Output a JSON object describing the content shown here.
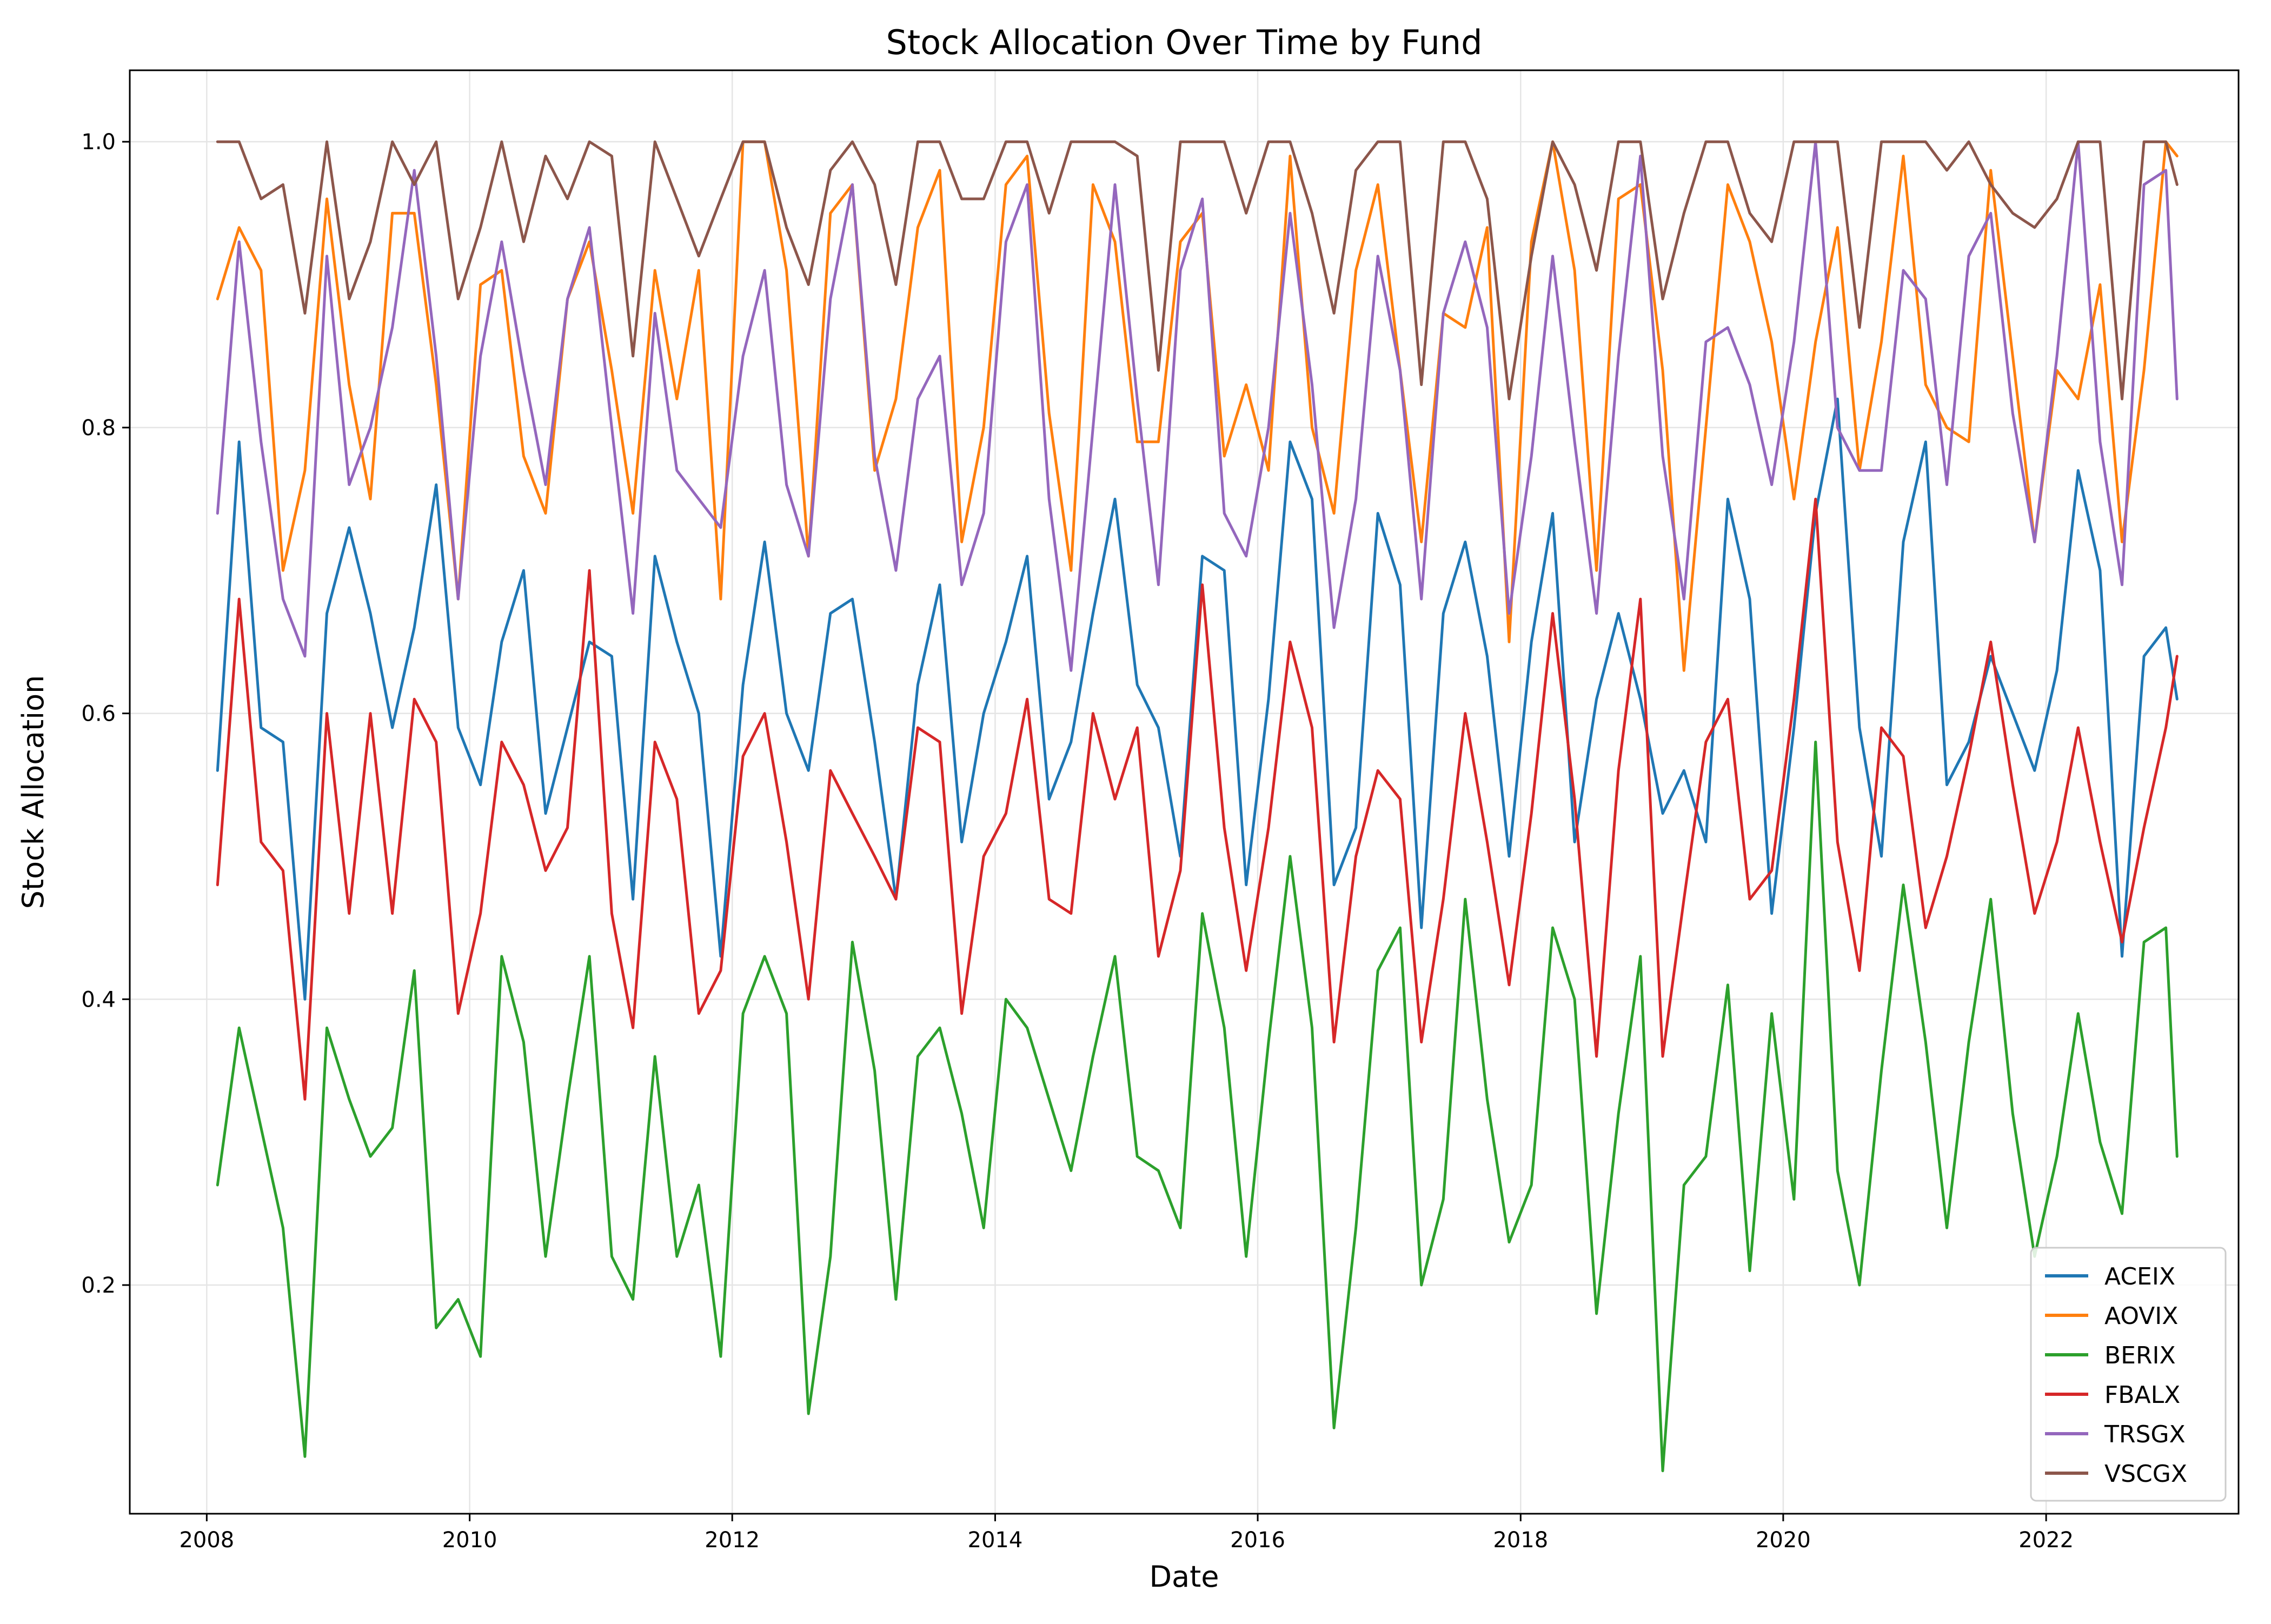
{
  "chart_data": {
    "type": "line",
    "title": "Stock Allocation Over Time by Fund",
    "xlabel": "Date",
    "ylabel": "Stock Allocation",
    "x_type": "date",
    "xlim": [
      "2007-06-01",
      "2023-06-20"
    ],
    "ylim": [
      0.04,
      1.05
    ],
    "x_ticks": [
      "2008",
      "2010",
      "2012",
      "2014",
      "2016",
      "2018",
      "2020",
      "2022"
    ],
    "y_ticks": [
      "0.2",
      "0.4",
      "0.6",
      "0.8",
      "1.0"
    ],
    "grid": true,
    "legend_position": "bottom-right",
    "x": [
      "2008-01-31",
      "2008-03-31",
      "2008-05-31",
      "2008-07-31",
      "2008-09-30",
      "2008-11-30",
      "2009-01-31",
      "2009-03-31",
      "2009-05-31",
      "2009-07-31",
      "2009-09-30",
      "2009-11-30",
      "2010-01-31",
      "2010-03-31",
      "2010-05-31",
      "2010-07-31",
      "2010-09-30",
      "2010-11-30",
      "2011-01-31",
      "2011-03-31",
      "2011-05-31",
      "2011-07-31",
      "2011-09-30",
      "2011-11-30",
      "2012-01-31",
      "2012-03-31",
      "2012-05-31",
      "2012-07-31",
      "2012-09-30",
      "2012-11-30",
      "2013-01-31",
      "2013-03-31",
      "2013-05-31",
      "2013-07-31",
      "2013-09-30",
      "2013-11-30",
      "2014-01-31",
      "2014-03-31",
      "2014-05-31",
      "2014-07-31",
      "2014-09-30",
      "2014-11-30",
      "2015-01-31",
      "2015-03-31",
      "2015-05-31",
      "2015-07-31",
      "2015-09-30",
      "2015-11-30",
      "2016-01-31",
      "2016-03-31",
      "2016-05-31",
      "2016-07-31",
      "2016-09-30",
      "2016-11-30",
      "2017-01-31",
      "2017-03-31",
      "2017-05-31",
      "2017-07-31",
      "2017-09-30",
      "2017-11-30",
      "2018-01-31",
      "2018-03-31",
      "2018-05-31",
      "2018-07-31",
      "2018-09-30",
      "2018-11-30",
      "2019-01-31",
      "2019-03-31",
      "2019-05-31",
      "2019-07-31",
      "2019-09-30",
      "2019-11-30",
      "2020-01-31",
      "2020-03-31",
      "2020-05-31",
      "2020-07-31",
      "2020-09-30",
      "2020-11-30",
      "2021-01-31",
      "2021-03-31",
      "2021-05-31",
      "2021-07-31",
      "2021-09-30",
      "2021-11-30",
      "2022-01-31",
      "2022-03-31",
      "2022-05-31",
      "2022-07-31",
      "2022-09-30",
      "2022-11-30",
      "2022-12-31"
    ],
    "series": [
      {
        "name": "ACEIX",
        "color": "#1f77b4",
        "values": [
          0.56,
          0.79,
          0.59,
          0.58,
          0.4,
          0.67,
          0.73,
          0.67,
          0.59,
          0.66,
          0.76,
          0.59,
          0.55,
          0.65,
          0.7,
          0.53,
          0.59,
          0.65,
          0.64,
          0.47,
          0.71,
          0.65,
          0.6,
          0.43,
          0.62,
          0.72,
          0.6,
          0.56,
          0.67,
          0.68,
          0.58,
          0.47,
          0.62,
          0.69,
          0.51,
          0.6,
          0.65,
          0.71,
          0.54,
          0.58,
          0.67,
          0.75,
          0.62,
          0.59,
          0.5,
          0.71,
          0.7,
          0.48,
          0.61,
          0.79,
          0.75,
          0.48,
          0.52,
          0.74,
          0.69,
          0.45,
          0.67,
          0.72,
          0.64,
          0.5,
          0.65,
          0.74,
          0.51,
          0.61,
          0.67,
          0.61,
          0.53,
          0.56,
          0.51,
          0.75,
          0.68,
          0.46,
          0.59,
          0.74,
          0.82,
          0.59,
          0.5,
          0.72,
          0.79,
          0.55,
          0.58,
          0.64,
          0.6,
          0.56,
          0.63,
          0.77,
          0.7,
          0.43,
          0.64,
          0.66,
          0.61
        ]
      },
      {
        "name": "AOVIX",
        "color": "#ff7f0e",
        "values": [
          0.89,
          0.94,
          0.91,
          0.7,
          0.77,
          0.96,
          0.83,
          0.75,
          0.95,
          0.95,
          0.83,
          0.68,
          0.9,
          0.91,
          0.78,
          0.74,
          0.89,
          0.93,
          0.84,
          0.74,
          0.91,
          0.82,
          0.91,
          0.68,
          1.0,
          1.0,
          0.91,
          0.71,
          0.95,
          0.97,
          0.77,
          0.82,
          0.94,
          0.98,
          0.72,
          0.8,
          0.97,
          0.99,
          0.81,
          0.7,
          0.97,
          0.93,
          0.79,
          0.79,
          0.93,
          0.95,
          0.78,
          0.83,
          0.77,
          0.99,
          0.8,
          0.74,
          0.91,
          0.97,
          0.84,
          0.72,
          0.88,
          0.87,
          0.94,
          0.65,
          0.93,
          1.0,
          0.91,
          0.7,
          0.96,
          0.97,
          0.84,
          0.63,
          0.8,
          0.97,
          0.93,
          0.86,
          0.75,
          0.86,
          0.94,
          0.77,
          0.86,
          0.99,
          0.83,
          0.8,
          0.79,
          0.98,
          0.85,
          0.72,
          0.84,
          0.82,
          0.9,
          0.72,
          0.84,
          1.0,
          0.99
        ]
      },
      {
        "name": "BERIX",
        "color": "#2ca02c",
        "values": [
          0.27,
          0.38,
          0.31,
          0.24,
          0.08,
          0.38,
          0.33,
          0.29,
          0.31,
          0.42,
          0.17,
          0.19,
          0.15,
          0.43,
          0.37,
          0.22,
          0.33,
          0.43,
          0.22,
          0.19,
          0.36,
          0.22,
          0.27,
          0.15,
          0.39,
          0.43,
          0.39,
          0.11,
          0.22,
          0.44,
          0.35,
          0.19,
          0.36,
          0.38,
          0.32,
          0.24,
          0.4,
          0.38,
          0.33,
          0.28,
          0.36,
          0.43,
          0.29,
          0.28,
          0.24,
          0.46,
          0.38,
          0.22,
          0.37,
          0.5,
          0.38,
          0.1,
          0.24,
          0.42,
          0.45,
          0.2,
          0.26,
          0.47,
          0.33,
          0.23,
          0.27,
          0.45,
          0.4,
          0.18,
          0.32,
          0.43,
          0.07,
          0.27,
          0.29,
          0.41,
          0.21,
          0.39,
          0.26,
          0.58,
          0.28,
          0.2,
          0.35,
          0.48,
          0.37,
          0.24,
          0.37,
          0.47,
          0.32,
          0.22,
          0.29,
          0.39,
          0.3,
          0.25,
          0.44,
          0.45,
          0.29
        ]
      },
      {
        "name": "FBALX",
        "color": "#d62728",
        "values": [
          0.48,
          0.68,
          0.51,
          0.49,
          0.33,
          0.6,
          0.46,
          0.6,
          0.46,
          0.61,
          0.58,
          0.39,
          0.46,
          0.58,
          0.55,
          0.49,
          0.52,
          0.7,
          0.46,
          0.38,
          0.58,
          0.54,
          0.39,
          0.42,
          0.57,
          0.6,
          0.51,
          0.4,
          0.56,
          0.53,
          0.5,
          0.47,
          0.59,
          0.58,
          0.39,
          0.5,
          0.53,
          0.61,
          0.47,
          0.46,
          0.6,
          0.54,
          0.59,
          0.43,
          0.49,
          0.69,
          0.52,
          0.42,
          0.52,
          0.65,
          0.59,
          0.37,
          0.5,
          0.56,
          0.54,
          0.37,
          0.47,
          0.6,
          0.51,
          0.41,
          0.53,
          0.67,
          0.54,
          0.36,
          0.56,
          0.68,
          0.36,
          0.47,
          0.58,
          0.61,
          0.47,
          0.49,
          0.61,
          0.75,
          0.51,
          0.42,
          0.59,
          0.57,
          0.45,
          0.5,
          0.57,
          0.65,
          0.55,
          0.46,
          0.51,
          0.59,
          0.51,
          0.44,
          0.52,
          0.59,
          0.64
        ]
      },
      {
        "name": "TRSGX",
        "color": "#9467bd",
        "values": [
          0.74,
          0.93,
          0.79,
          0.68,
          0.64,
          0.92,
          0.76,
          0.8,
          0.87,
          0.98,
          0.85,
          0.68,
          0.85,
          0.93,
          0.84,
          0.76,
          0.89,
          0.94,
          0.8,
          0.67,
          0.88,
          0.77,
          0.75,
          0.73,
          0.85,
          0.91,
          0.76,
          0.71,
          0.89,
          0.97,
          0.78,
          0.7,
          0.82,
          0.85,
          0.69,
          0.74,
          0.93,
          0.97,
          0.75,
          0.63,
          0.8,
          0.97,
          0.82,
          0.69,
          0.91,
          0.96,
          0.74,
          0.71,
          0.8,
          0.95,
          0.83,
          0.66,
          0.75,
          0.92,
          0.84,
          0.68,
          0.88,
          0.93,
          0.87,
          0.67,
          0.78,
          0.92,
          0.79,
          0.67,
          0.85,
          0.99,
          0.78,
          0.68,
          0.86,
          0.87,
          0.83,
          0.76,
          0.86,
          1.0,
          0.8,
          0.77,
          0.77,
          0.91,
          0.89,
          0.76,
          0.92,
          0.95,
          0.81,
          0.72,
          0.85,
          1.0,
          0.79,
          0.69,
          0.97,
          0.98,
          0.82
        ]
      },
      {
        "name": "VSCGX",
        "color": "#8c564b",
        "values": [
          1.0,
          1.0,
          0.96,
          0.97,
          0.88,
          1.0,
          0.89,
          0.93,
          1.0,
          0.97,
          1.0,
          0.89,
          0.94,
          1.0,
          0.93,
          0.99,
          0.96,
          1.0,
          0.99,
          0.85,
          1.0,
          0.96,
          0.92,
          0.96,
          1.0,
          1.0,
          0.94,
          0.9,
          0.98,
          1.0,
          0.97,
          0.9,
          1.0,
          1.0,
          0.96,
          0.96,
          1.0,
          1.0,
          0.95,
          1.0,
          1.0,
          1.0,
          0.99,
          0.84,
          1.0,
          1.0,
          1.0,
          0.95,
          1.0,
          1.0,
          0.95,
          0.88,
          0.98,
          1.0,
          1.0,
          0.83,
          1.0,
          1.0,
          0.96,
          0.82,
          0.92,
          1.0,
          0.97,
          0.91,
          1.0,
          1.0,
          0.89,
          0.95,
          1.0,
          1.0,
          0.95,
          0.93,
          1.0,
          1.0,
          1.0,
          0.87,
          1.0,
          1.0,
          1.0,
          0.98,
          1.0,
          0.97,
          0.95,
          0.94,
          0.96,
          1.0,
          1.0,
          0.82,
          1.0,
          1.0,
          0.97
        ]
      }
    ]
  }
}
